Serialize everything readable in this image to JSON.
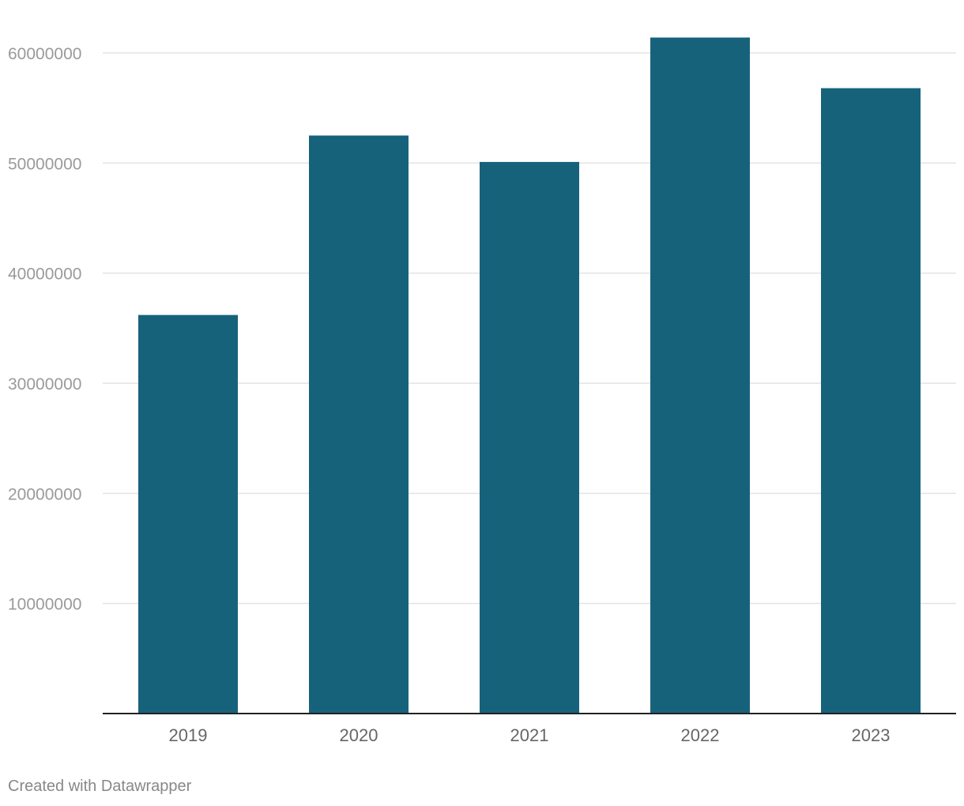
{
  "chart_data": {
    "type": "bar",
    "categories": [
      "2019",
      "2020",
      "2021",
      "2022",
      "2023"
    ],
    "values": [
      36200000,
      52500000,
      50100000,
      61400000,
      56800000
    ],
    "ylim": [
      0,
      60000000
    ],
    "yticks": [
      10000000,
      20000000,
      30000000,
      40000000,
      50000000,
      60000000
    ],
    "ytick_labels": [
      "10000000",
      "20000000",
      "30000000",
      "40000000",
      "50000000",
      "60000000"
    ],
    "grid": true,
    "title": "",
    "xlabel": "",
    "ylabel": "",
    "bar_color": "#17627b"
  },
  "footer": {
    "credit": "Created with Datawrapper"
  }
}
